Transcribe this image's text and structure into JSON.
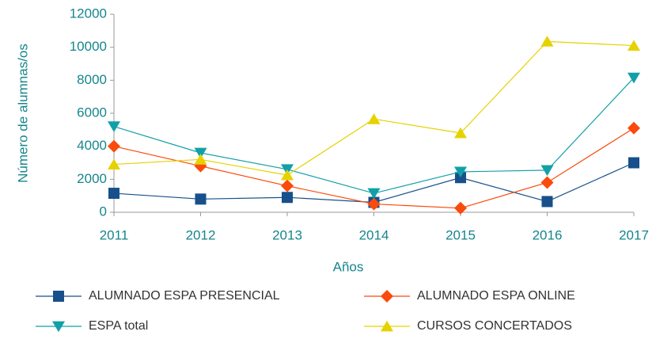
{
  "chart_data": {
    "type": "line",
    "x_label": "Años",
    "y_label": "Número de alumnas/os",
    "x": [
      2011,
      2012,
      2013,
      2014,
      2015,
      2016,
      2017
    ],
    "xlim": [
      2011,
      2017
    ],
    "xticks": [
      2011,
      2012,
      2013,
      2014,
      2015,
      2016,
      2017
    ],
    "ylim": [
      0,
      12000
    ],
    "yticks": [
      0,
      2000,
      4000,
      6000,
      8000,
      10000,
      12000
    ],
    "grid": false,
    "legend": "bottom",
    "series": [
      {
        "name": "ALUMNADO ESPA PRESENCIAL",
        "color": "#17508a",
        "marker": "square",
        "values": [
          1150,
          800,
          900,
          600,
          2100,
          650,
          3000
        ]
      },
      {
        "name": "ALUMNADO ESPA ONLINE",
        "color": "#fa4a0c",
        "marker": "diamond",
        "values": [
          4000,
          2800,
          1600,
          500,
          250,
          1800,
          5100
        ]
      },
      {
        "name": "ESPA total",
        "color": "#12a0a8",
        "marker": "triangle-down",
        "values": [
          5200,
          3600,
          2600,
          1150,
          2450,
          2550,
          8150
        ]
      },
      {
        "name": "CURSOS CONCERTADOS",
        "color": "#e6d200",
        "marker": "triangle-up",
        "values": [
          2900,
          3200,
          2250,
          5650,
          4800,
          10350,
          10100
        ]
      }
    ]
  }
}
